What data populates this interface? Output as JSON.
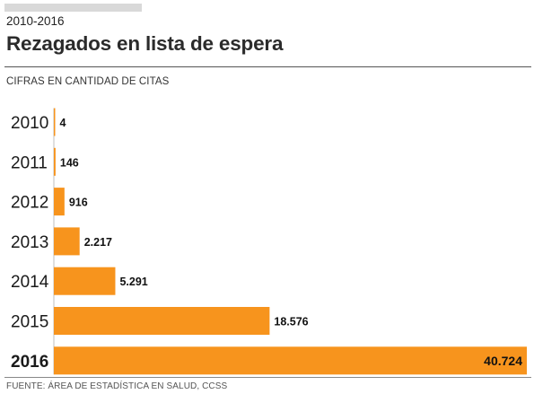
{
  "header": {
    "period": "2010-2016",
    "title": "Rezagados en lista de espera",
    "subtitle": "CIFRAS EN CANTIDAD DE CITAS"
  },
  "footer": {
    "source": "FUENTE: ÁREA DE ESTADÍSTICA EN SALUD, CCSS"
  },
  "colors": {
    "bar": "#f7941d",
    "axis": "#bfbfbf"
  },
  "chart_data": {
    "type": "bar",
    "orientation": "horizontal",
    "categories": [
      "2010",
      "2011",
      "2012",
      "2013",
      "2014",
      "2015",
      "2016"
    ],
    "values": [
      4,
      146,
      916,
      2217,
      5291,
      18576,
      40724
    ],
    "value_labels": [
      "4",
      "146",
      "916",
      "2.217",
      "5.291",
      "18.576",
      "40.724"
    ],
    "highlight": "2016",
    "title": "Rezagados en lista de espera",
    "xlabel": "",
    "ylabel": "",
    "xlim": [
      0,
      40724
    ],
    "grid": false,
    "legend": "none"
  }
}
